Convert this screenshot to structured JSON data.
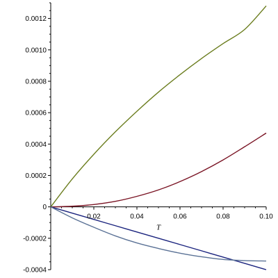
{
  "chart_data": {
    "type": "line",
    "title": "",
    "xlabel": "T",
    "ylabel": "",
    "xlim": [
      0,
      0.1
    ],
    "ylim": [
      -0.0004,
      0.0013
    ],
    "grid": false,
    "x_ticks": [
      0.02,
      0.04,
      0.06,
      0.08,
      0.1
    ],
    "x_tick_labels": [
      "0.02",
      "0.04",
      "0.06",
      "0.08",
      "0.10"
    ],
    "y_ticks": [
      -0.0004,
      -0.0002,
      0,
      0.0002,
      0.0004,
      0.0006,
      0.0008,
      0.001,
      0.0012
    ],
    "y_tick_labels": [
      "-0.0004",
      "-0.0002",
      "0",
      "0.0002",
      "0.0004",
      "0.0006",
      "0.0008",
      "0.0010",
      "0.0012"
    ],
    "series": [
      {
        "color": "#6b7d1e",
        "x": [
          0,
          0.01,
          0.02,
          0.03,
          0.04,
          0.05,
          0.06,
          0.07,
          0.08,
          0.09,
          0.1
        ],
        "y": [
          0,
          0.000178,
          0.000335,
          0.000478,
          0.000609,
          0.000731,
          0.000842,
          0.000945,
          0.00104,
          0.00113,
          0.00128
        ]
      },
      {
        "color": "#7a1424",
        "x": [
          0,
          0.01,
          0.02,
          0.03,
          0.04,
          0.05,
          0.06,
          0.07,
          0.08,
          0.09,
          0.1
        ],
        "y": [
          0,
          4e-06,
          1.5e-05,
          3.5e-05,
          6.7e-05,
          0.000108,
          0.000161,
          0.000225,
          0.000299,
          0.000383,
          0.00047
        ]
      },
      {
        "color": "#1a237e",
        "x": [
          0,
          0.01,
          0.02,
          0.03,
          0.04,
          0.05,
          0.06,
          0.07,
          0.08,
          0.09,
          0.1
        ],
        "y": [
          0,
          -4e-05,
          -8e-05,
          -0.00012,
          -0.00016,
          -0.0002,
          -0.00024,
          -0.00028,
          -0.00032,
          -0.00036,
          -0.0004
        ]
      },
      {
        "color": "#5b7296",
        "x": [
          0,
          0.01,
          0.02,
          0.03,
          0.04,
          0.05,
          0.06,
          0.07,
          0.08,
          0.09,
          0.1
        ],
        "y": [
          0,
          -7e-05,
          -0.00013,
          -0.000185,
          -0.00023,
          -0.000265,
          -0.000295,
          -0.000318,
          -0.000335,
          -0.000342,
          -0.000345
        ]
      }
    ]
  }
}
